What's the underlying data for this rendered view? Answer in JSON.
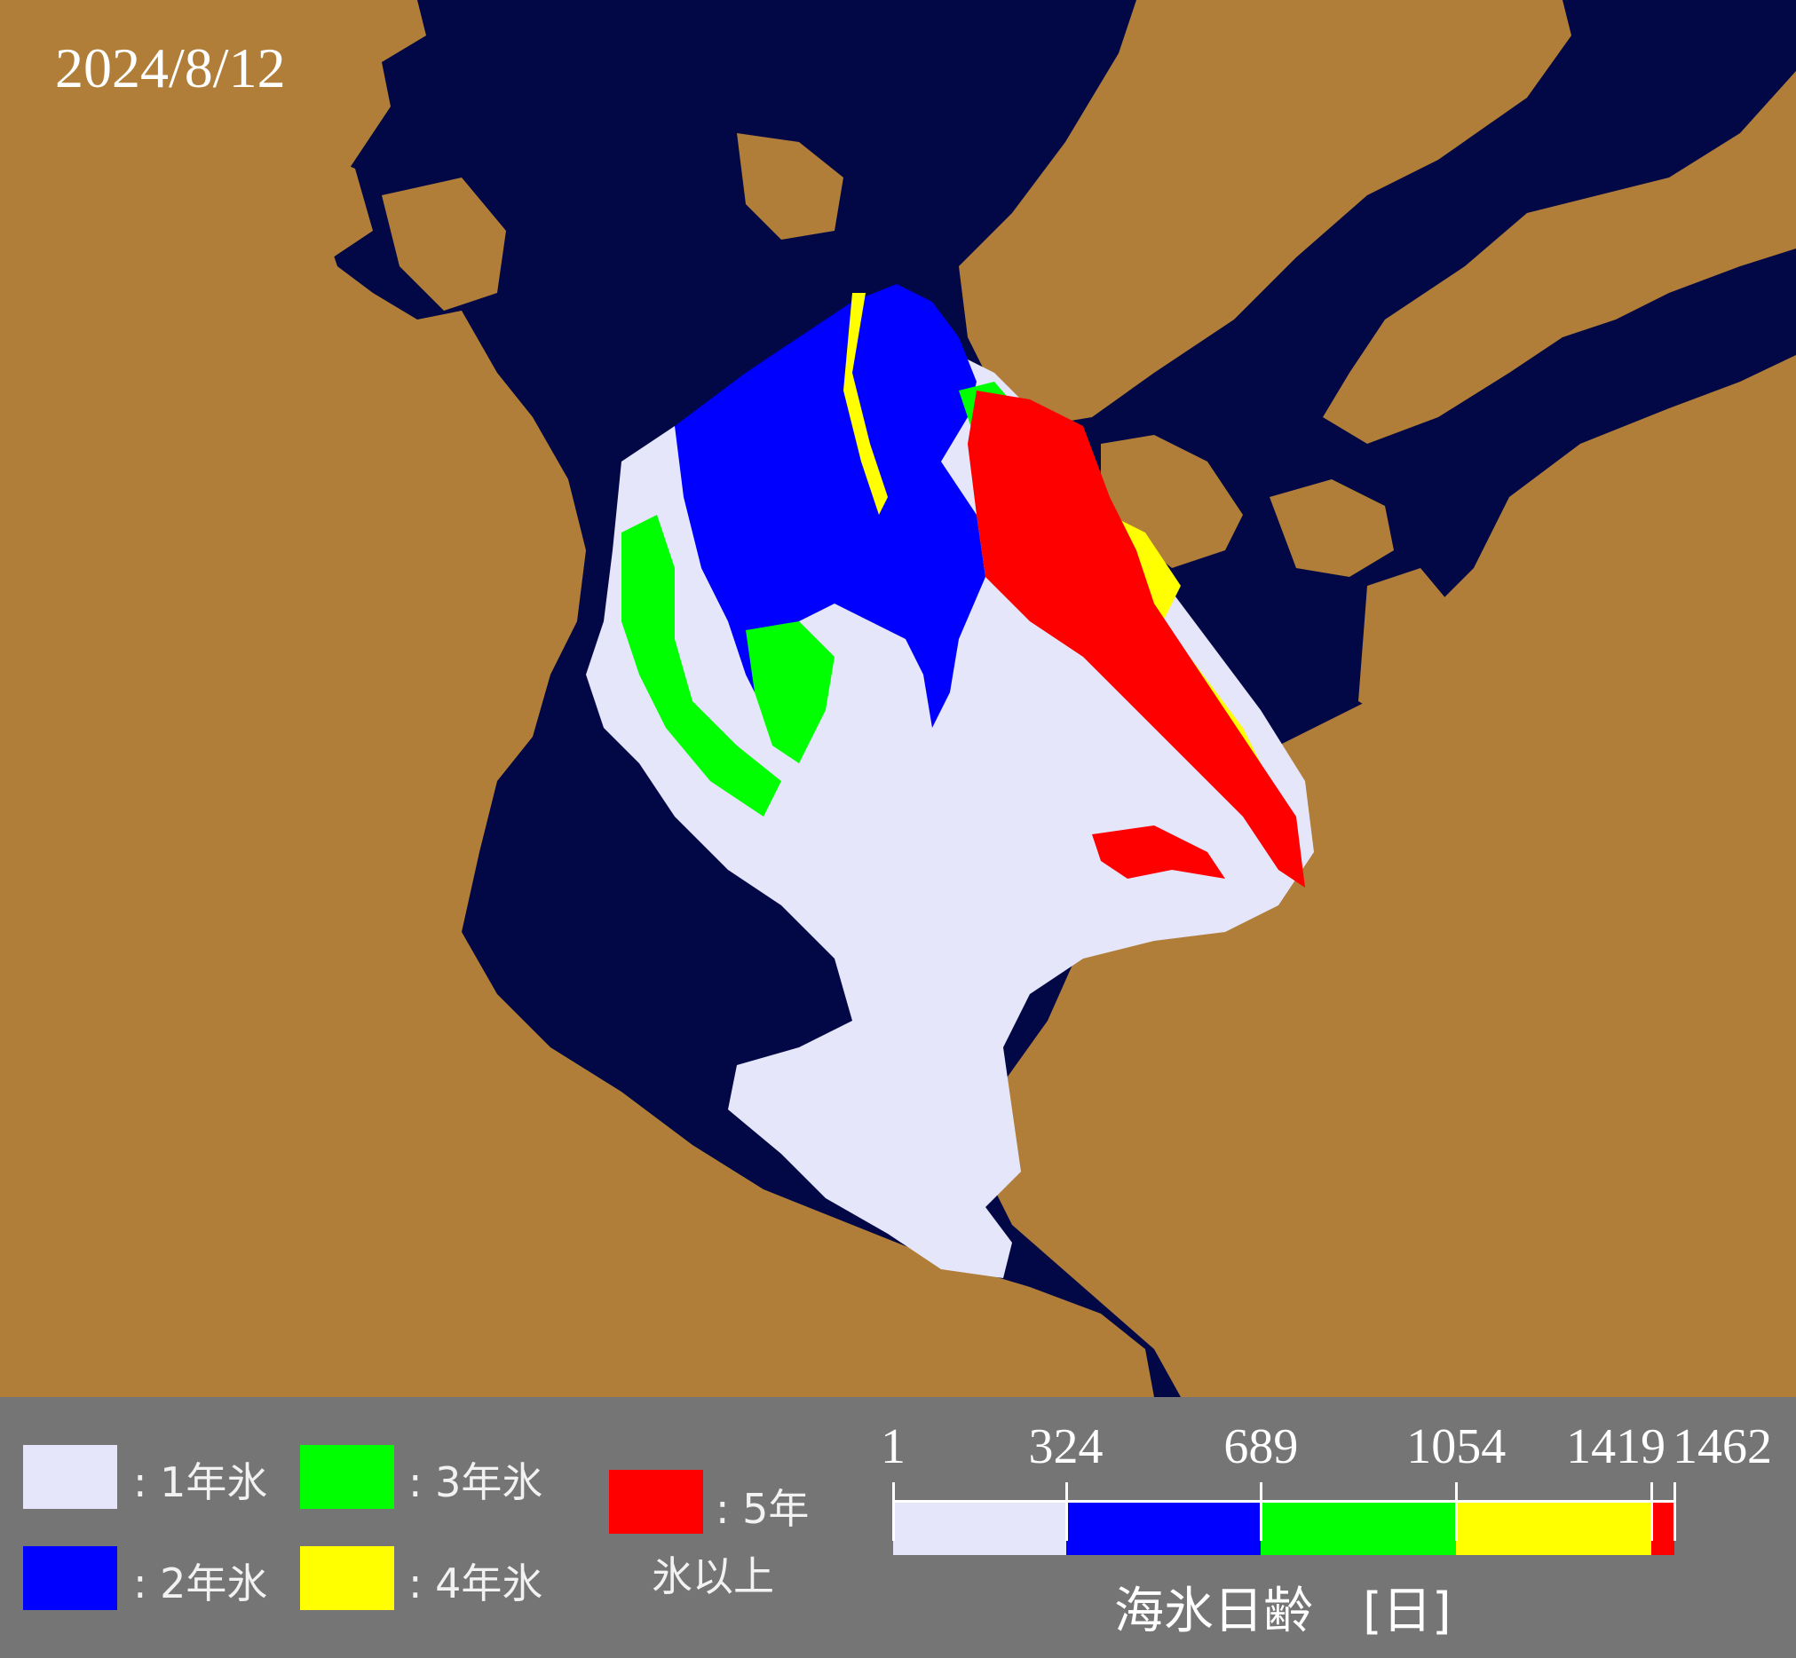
{
  "date": "2024/8/12",
  "colors": {
    "land": "#b07e38",
    "ocean": "#020845",
    "legend_bg": "#757575",
    "first_year": "#e6e6fa",
    "second_year": "#0000ff",
    "third_year": "#00ff00",
    "fourth_year": "#ffff00",
    "five_plus_year": "#ff0000"
  },
  "legend": {
    "items": [
      {
        "label": ": 1年氷",
        "color": "#e6e6fa"
      },
      {
        "label": ": 2年氷",
        "color": "#0000ff"
      },
      {
        "label": ": 3年氷",
        "color": "#00ff00"
      },
      {
        "label": ": 4年氷",
        "color": "#ffff00"
      }
    ],
    "five_plus": {
      "label_line1": ": 5年",
      "label_line2": "氷以上",
      "color": "#ff0000"
    }
  },
  "scale": {
    "title": "海氷日齢　[日]",
    "ticks": [
      "1",
      "324",
      "689",
      "1054",
      "1419",
      "1462"
    ],
    "segments": [
      {
        "from": 1,
        "to": 324,
        "color": "#e6e6fa"
      },
      {
        "from": 324,
        "to": 689,
        "color": "#0000ff"
      },
      {
        "from": 689,
        "to": 1054,
        "color": "#00ff00"
      },
      {
        "from": 1054,
        "to": 1419,
        "color": "#ffff00"
      },
      {
        "from": 1419,
        "to": 1462,
        "color": "#ff0000"
      }
    ]
  }
}
